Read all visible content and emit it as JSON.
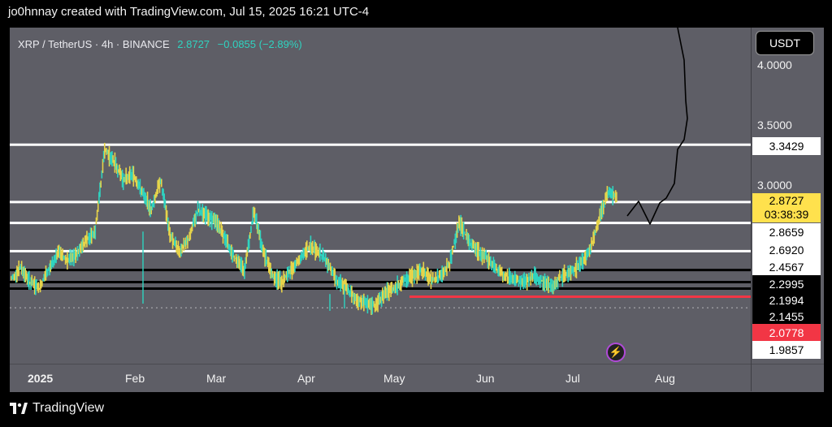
{
  "header_text": "jo0hnnay created with TradingView.com, Jul 15, 2025 16:21 UTC-4",
  "symbol": {
    "name": "XRP / TetherUS · 4h · BINANCE",
    "price": "2.8727",
    "change": "−0.0855 (−2.89%)"
  },
  "currency_button": "USDT",
  "footer_brand": "TradingView",
  "colors": {
    "background": "#5e5e66",
    "up": "#2fd3c0",
    "down": "#e6d34a",
    "support": "#f23645"
  },
  "chart_data": {
    "type": "line",
    "title": "XRP / TetherUS · 4h · BINANCE",
    "xlabel": "",
    "ylabel": "",
    "x_ticks": [
      {
        "label": "2025",
        "bold": true
      },
      {
        "label": "Feb"
      },
      {
        "label": "Mar"
      },
      {
        "label": "Apr"
      },
      {
        "label": "May"
      },
      {
        "label": "Jun"
      },
      {
        "label": "Jul"
      },
      {
        "label": "Aug"
      }
    ],
    "y_ticks": [
      "4.0000",
      "3.5000",
      "3.0000"
    ],
    "ylim": [
      1.9,
      4.3
    ],
    "series": [
      {
        "values": [
          2.22,
          2.32,
          2.2,
          2.15,
          2.3,
          2.45,
          2.38,
          2.42,
          2.55,
          2.62,
          3.3,
          3.2,
          3.05,
          3.1,
          2.95,
          2.8,
          3.05,
          2.6,
          2.45,
          2.55,
          2.8,
          2.75,
          2.7,
          2.55,
          2.4,
          2.3,
          2.8,
          2.45,
          2.25,
          2.2,
          2.3,
          2.4,
          2.5,
          2.45,
          2.35,
          2.2,
          2.15,
          2.05,
          2.02,
          2.0,
          2.1,
          2.15,
          2.2,
          2.25,
          2.3,
          2.22,
          2.25,
          2.35,
          2.7,
          2.55,
          2.45,
          2.4,
          2.3,
          2.25,
          2.22,
          2.2,
          2.25,
          2.2,
          2.15,
          2.25,
          2.28,
          2.35,
          2.45,
          2.72,
          2.95,
          2.9
        ]
      }
    ],
    "levels": [
      {
        "price": "3.3429",
        "style": "white"
      },
      {
        "price": "2.8659",
        "style": "white"
      },
      {
        "price": "2.6920",
        "style": "white"
      },
      {
        "price": "2.4567",
        "style": "white"
      },
      {
        "price": "2.2995",
        "style": "black"
      },
      {
        "price": "2.1994",
        "style": "black"
      },
      {
        "price": "2.1455",
        "style": "black"
      },
      {
        "price": "2.0778",
        "style": "red"
      },
      {
        "price": "1.9857",
        "style": "white"
      }
    ],
    "last_price": "2.8727",
    "countdown": "03:38:39",
    "projection": [
      2.95,
      2.82,
      2.94,
      2.8,
      2.99,
      3.35,
      3.4,
      3.8,
      4.3
    ]
  }
}
